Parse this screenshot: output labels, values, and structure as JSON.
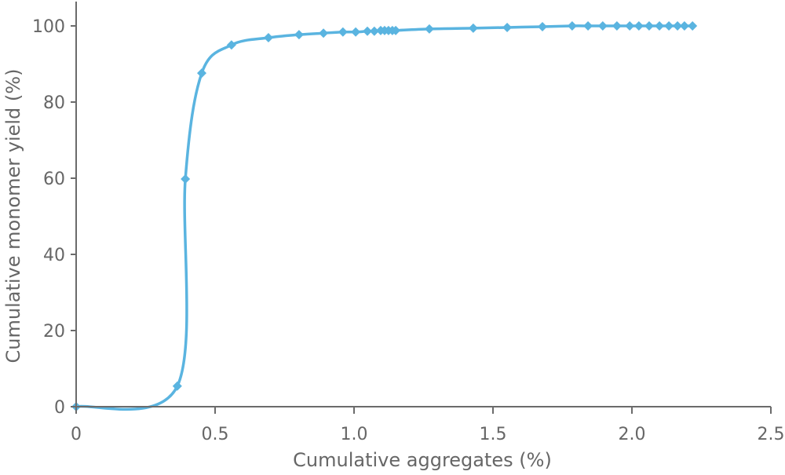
{
  "chart_data": {
    "type": "line",
    "title": "",
    "xlabel": "Cumulative aggregates (%)",
    "ylabel": "Cumulative monomer yield (%)",
    "xlim": [
      0,
      2.5
    ],
    "ylim": [
      0,
      100
    ],
    "xticks": [
      0,
      0.5,
      1.0,
      1.5,
      2.0,
      2.5
    ],
    "xtick_labels": [
      "0",
      "0.5",
      "1.0",
      "1.5",
      "2.0",
      "2.5"
    ],
    "yticks": [
      0,
      20,
      40,
      60,
      80,
      100
    ],
    "ytick_labels": [
      "0",
      "20",
      "40",
      "60",
      "80",
      "100"
    ],
    "grid": false,
    "legend": null,
    "marker": "diamond",
    "smooth": true,
    "series": [
      {
        "name": "Cumulative monomer yield",
        "color": "#5AB4E0",
        "x": [
          0,
          0.364,
          0.393,
          0.452,
          0.559,
          0.692,
          0.802,
          0.89,
          0.96,
          1.006,
          1.048,
          1.073,
          1.096,
          1.11,
          1.124,
          1.138,
          1.15,
          1.271,
          1.429,
          1.551,
          1.678,
          1.785,
          1.842,
          1.895,
          1.946,
          1.992,
          2.025,
          2.062,
          2.099,
          2.133,
          2.164,
          2.189,
          2.218
        ],
        "y": [
          0,
          5.4,
          59.8,
          87.6,
          95.0,
          96.9,
          97.7,
          98.1,
          98.4,
          98.4,
          98.6,
          98.6,
          98.8,
          98.8,
          98.8,
          98.8,
          98.8,
          99.2,
          99.4,
          99.6,
          99.8,
          100,
          100,
          100,
          100,
          100,
          100,
          100,
          100,
          100,
          100,
          100,
          100
        ]
      }
    ]
  }
}
